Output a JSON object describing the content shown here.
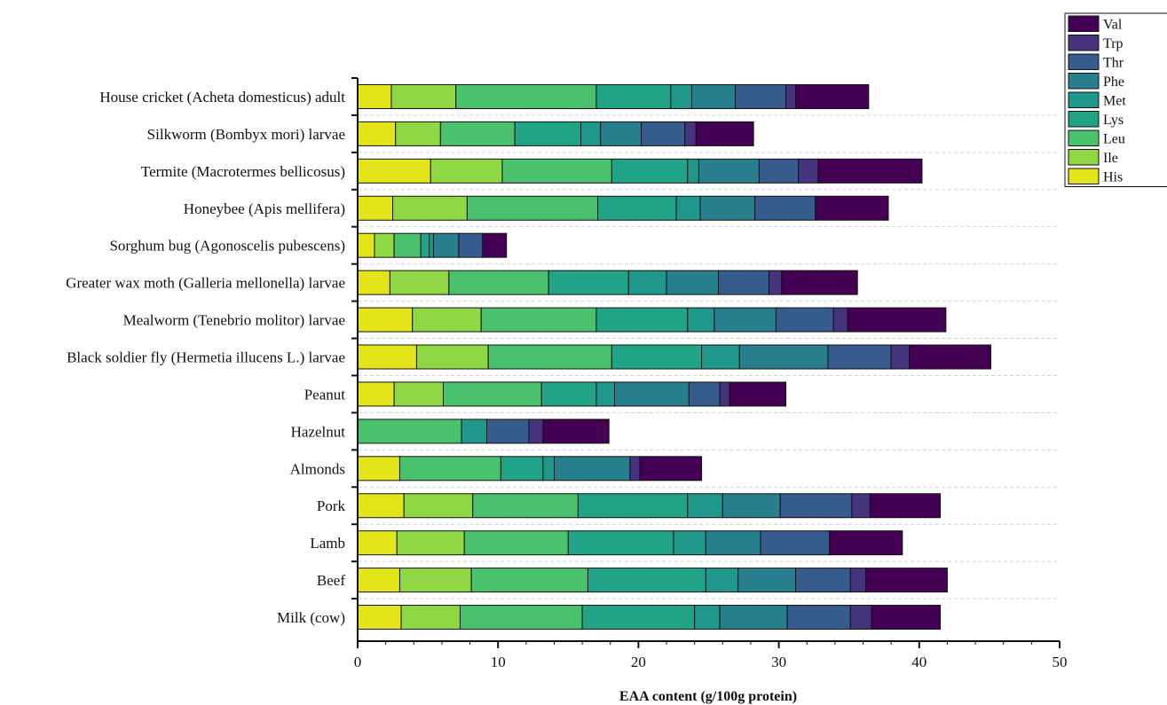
{
  "chart_data": {
    "type": "bar",
    "orientation": "horizontal",
    "stacked": true,
    "xlabel": "EAA content (g/100g protein)",
    "xlim": [
      0,
      50
    ],
    "x_ticks": [
      0,
      10,
      20,
      30,
      40,
      50
    ],
    "grid": "horizontal dashed",
    "legend_position": "top-right",
    "categories": [
      "House cricket (Acheta domesticus) adult",
      "Silkworm (Bombyx mori) larvae",
      "Termite (Macrotermes bellicosus)",
      "Honeybee (Apis mellifera)",
      "Sorghum bug (Agonoscelis pubescens)",
      "Greater wax moth (Galleria mellonella) larvae",
      "Mealworm (Tenebrio molitor) larvae",
      "Black soldier fly (Hermetia illucens L.) larvae",
      "Peanut",
      "Hazelnut",
      "Almonds",
      "Pork",
      "Lamb",
      "Beef",
      "Milk (cow)"
    ],
    "series": [
      {
        "name": "His",
        "color": "#e4e41a",
        "values": [
          2.4,
          2.7,
          5.2,
          2.5,
          1.2,
          2.3,
          3.9,
          4.2,
          2.6,
          0,
          3.0,
          3.3,
          2.8,
          3.0,
          3.1
        ]
      },
      {
        "name": "Ile",
        "color": "#8fd744",
        "values": [
          4.6,
          3.2,
          5.1,
          5.3,
          1.4,
          4.2,
          4.9,
          5.1,
          3.5,
          0,
          0,
          4.9,
          4.8,
          5.1,
          4.2
        ]
      },
      {
        "name": "Leu",
        "color": "#4ac16d",
        "values": [
          10.0,
          5.3,
          7.8,
          9.3,
          1.9,
          7.1,
          8.2,
          8.8,
          7.0,
          7.4,
          7.2,
          7.5,
          7.4,
          8.3,
          8.7
        ]
      },
      {
        "name": "Lys",
        "color": "#20a386",
        "values": [
          5.3,
          4.7,
          5.4,
          5.6,
          0.6,
          5.7,
          6.5,
          6.4,
          3.9,
          0,
          3.0,
          7.8,
          7.5,
          8.4,
          8.0
        ]
      },
      {
        "name": "Met",
        "color": "#1f988b",
        "values": [
          1.5,
          1.4,
          0.8,
          1.7,
          0.3,
          2.7,
          1.9,
          2.7,
          1.3,
          1.8,
          0.8,
          2.5,
          2.3,
          2.3,
          1.8
        ]
      },
      {
        "name": "Phe",
        "color": "#277f8e",
        "values": [
          3.1,
          2.9,
          4.3,
          3.9,
          1.8,
          3.7,
          4.4,
          6.3,
          5.3,
          0,
          5.4,
          4.1,
          3.9,
          4.1,
          4.8
        ]
      },
      {
        "name": "Thr",
        "color": "#365c8d",
        "values": [
          3.6,
          3.1,
          2.8,
          4.3,
          1.7,
          3.6,
          4.1,
          4.5,
          2.2,
          3.0,
          0,
          5.1,
          4.9,
          3.9,
          4.5
        ]
      },
      {
        "name": "Trp",
        "color": "#46337e",
        "values": [
          0.7,
          0.8,
          1.4,
          0,
          0,
          0.9,
          1.0,
          1.3,
          0.7,
          1.0,
          0.7,
          1.3,
          0,
          1.1,
          1.5
        ]
      },
      {
        "name": "Val",
        "color": "#440154",
        "values": [
          5.2,
          4.1,
          7.4,
          5.2,
          1.7,
          5.4,
          7.0,
          5.8,
          4.0,
          4.7,
          4.4,
          5.0,
          5.2,
          5.8,
          4.9
        ]
      }
    ]
  }
}
